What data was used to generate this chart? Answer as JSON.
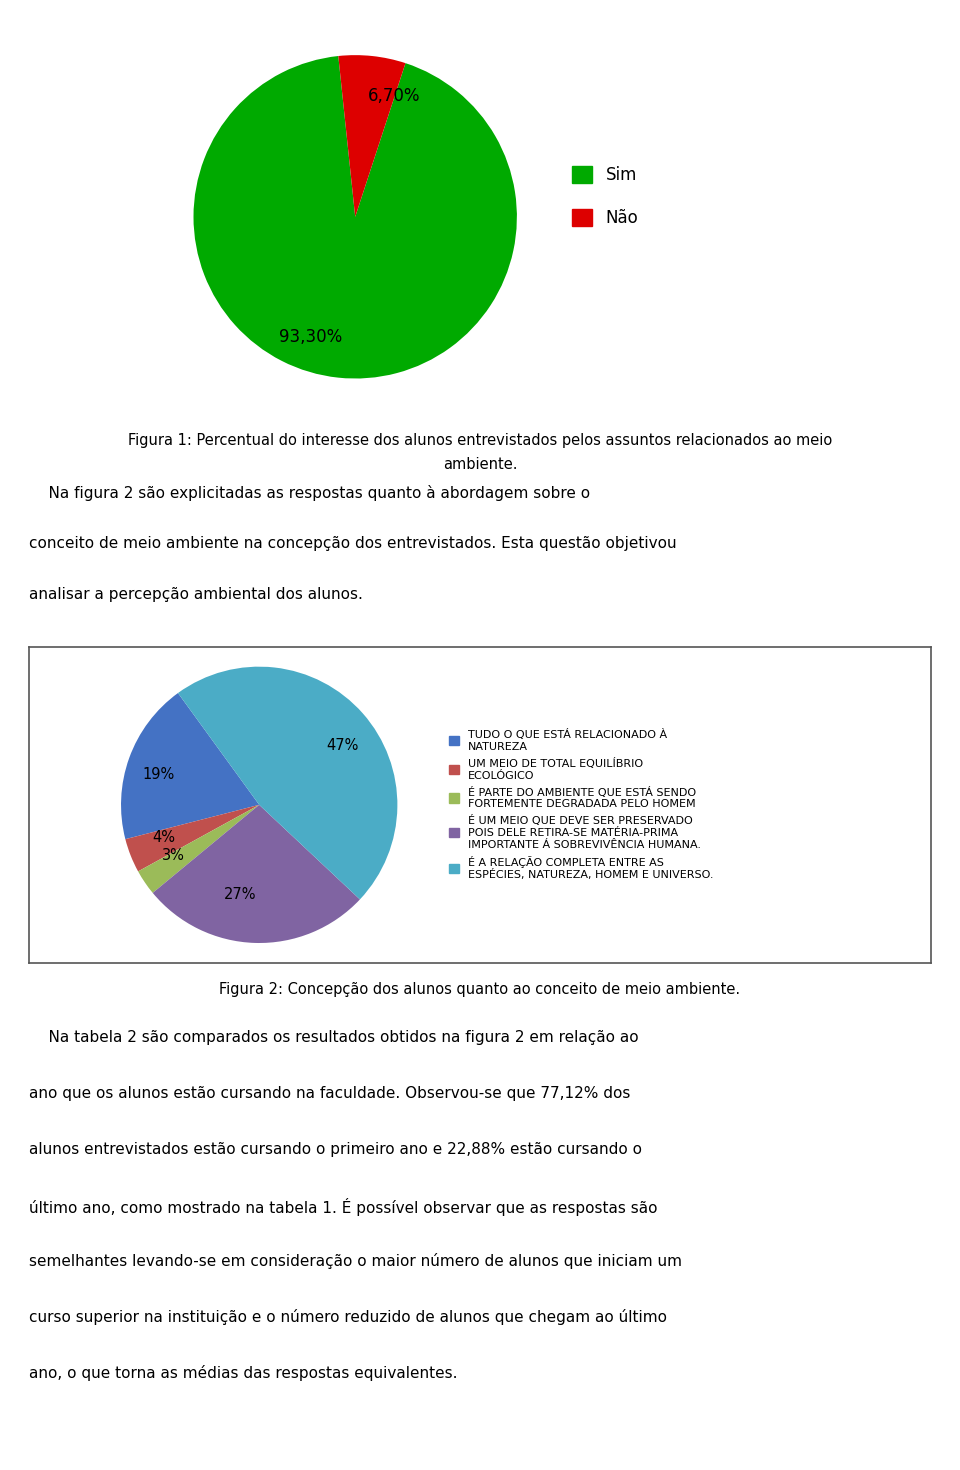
{
  "pie1_values": [
    93.3,
    6.7
  ],
  "pie1_labels": [
    "93,30%",
    "6,70%"
  ],
  "pie1_colors": [
    "#00aa00",
    "#dd0000"
  ],
  "pie1_legend_labels": [
    "Sim",
    "Não"
  ],
  "pie1_startangle": 96,
  "fig1_caption_line1": "Figura 1: Percentual do interesse dos alunos entrevistados pelos assuntos relacionados ao meio",
  "fig1_caption_line2": "ambiente.",
  "body_text1_line1": "    Na figura 2 são explicitadas as respostas quanto à abordagem sobre o",
  "body_text1_line2": "conceito de meio ambiente na concepção dos entrevistados. Esta questão objetivou",
  "body_text1_line3": "analisar a percepção ambiental dos alunos.",
  "pie2_values": [
    19,
    4,
    3,
    27,
    47
  ],
  "pie2_labels": [
    "19%",
    "4%",
    "3%",
    "27%",
    "47%"
  ],
  "pie2_colors": [
    "#4472c4",
    "#c0504d",
    "#9bbb59",
    "#8064a2",
    "#4bacc6"
  ],
  "pie2_legend_entries": [
    "TUDO O QUE ESTÁ RELACIONADO À\nNATUREZA",
    "UM MEIO DE TOTAL EQUILÍBRIO\nECOLÓGICO",
    "É PARTE DO AMBIENTE QUE ESTÁ SENDO\nFORTEMENTE DEGRADADA PELO HOMEM",
    "É UM MEIO QUE DEVE SER PRESERVADO\nPOIS DELE RETIRA-SE MATÉRIA-PRIMA\nIMPORTANTE Á SOBREVIVÊNCIA HUMANA.",
    "É A RELAÇÃO COMPLETA ENTRE AS\nESPÉCIES, NATUREZA, HOMEM E UNIVERSO."
  ],
  "pie2_startangle": 126,
  "fig2_caption": "Figura 2: Concepção dos alunos quanto ao conceito de meio ambiente.",
  "body_text2_lines": [
    "    Na tabela 2 são comparados os resultados obtidos na figura 2 em relação ao",
    "ano que os alunos estão cursando na faculdade. Observou-se que 77,12% dos",
    "alunos entrevistados estão cursando o primeiro ano e 22,88% estão cursando o",
    "último ano, como mostrado na tabela 1. É possível observar que as respostas são",
    "semelhantes levando-se em consideração o maior número de alunos que iniciam um",
    "curso superior na instituição e o número reduzido de alunos que chegam ao último",
    "ano, o que torna as médias das respostas equivalentes."
  ]
}
